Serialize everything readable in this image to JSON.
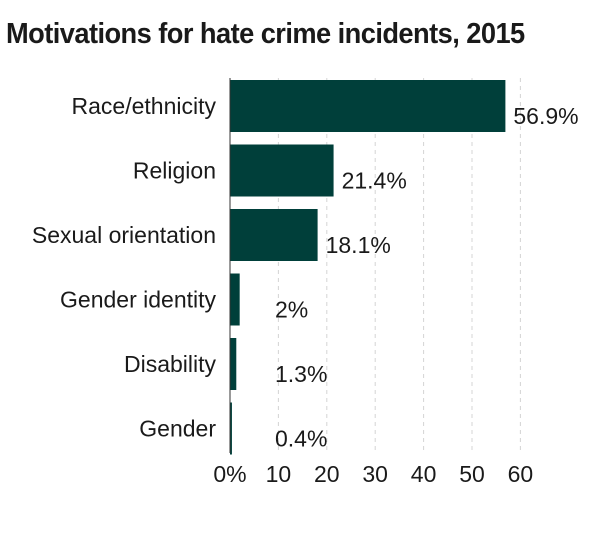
{
  "chart_data": {
    "type": "bar",
    "orientation": "horizontal",
    "title": "Motivations for hate crime incidents, 2015",
    "categories": [
      "Race/ethnicity",
      "Religion",
      "Sexual orientation",
      "Gender identity",
      "Disability",
      "Gender"
    ],
    "values": [
      56.9,
      21.4,
      18.1,
      2,
      1.3,
      0.4
    ],
    "value_labels": [
      "56.9%",
      "21.4%",
      "18.1%",
      "2%",
      "1.3%",
      "0.4%"
    ],
    "xlim": [
      0,
      60
    ],
    "xticks": [
      0,
      10,
      20,
      30,
      40,
      50,
      60
    ],
    "xtick_labels": [
      "0%",
      "10",
      "20",
      "30",
      "40",
      "50",
      "60"
    ],
    "grid": "vertical dashed",
    "bar_color": "#003f3a",
    "grid_color": "#d4d4d4",
    "xlabel": "",
    "ylabel": ""
  }
}
